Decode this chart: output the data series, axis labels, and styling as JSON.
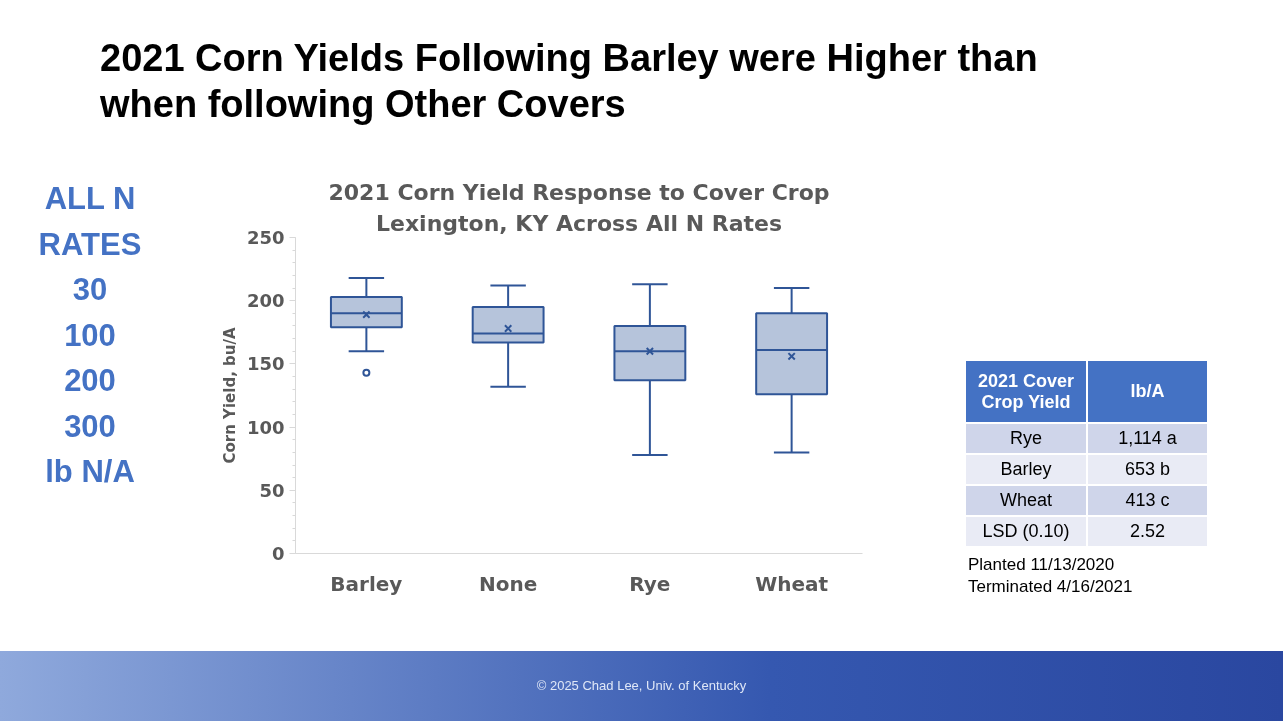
{
  "chart_data": {
    "type": "box",
    "title": "2021 Corn Yield Response to Cover Crop",
    "subtitle": "Lexington, KY Across All N Rates",
    "ylabel": "Corn Yield, bu/A",
    "categories": [
      "Barley",
      "None",
      "Rye",
      "Wheat"
    ],
    "series": [
      {
        "color": "#2f5597",
        "boxes": [
          {
            "low": 160,
            "q1": 179,
            "median": 190,
            "q3": 203,
            "high": 218,
            "mean": 189,
            "outliers": [
              143
            ]
          },
          {
            "low": 132,
            "q1": 167,
            "median": 174,
            "q3": 195,
            "high": 212,
            "mean": 178
          },
          {
            "low": 78,
            "q1": 137,
            "median": 160,
            "q3": 180,
            "high": 213,
            "mean": 160
          },
          {
            "low": 80,
            "q1": 126,
            "median": 161,
            "q3": 190,
            "high": 210,
            "mean": 156
          }
        ]
      }
    ],
    "ylim": [
      0,
      250
    ],
    "yticks": [
      0,
      50,
      100,
      150,
      200,
      250
    ],
    "grid": false,
    "annotations": [
      "2021 Corn Yields Following Barley were Higher than when following Other Covers",
      "ALL N",
      "RATES",
      "30",
      "100",
      "200",
      "300",
      "lb N/A",
      "2021 Cover Crop Yield",
      "lb/A",
      "Rye",
      "1,114 a",
      "Barley",
      "653 b",
      "Wheat",
      "413 c",
      "LSD (0.10)",
      "2.52",
      "Planted 11/13/2020",
      "Terminated 4/16/2021",
      "© 2025 Chad Lee, Univ. of Kentucky"
    ]
  }
}
